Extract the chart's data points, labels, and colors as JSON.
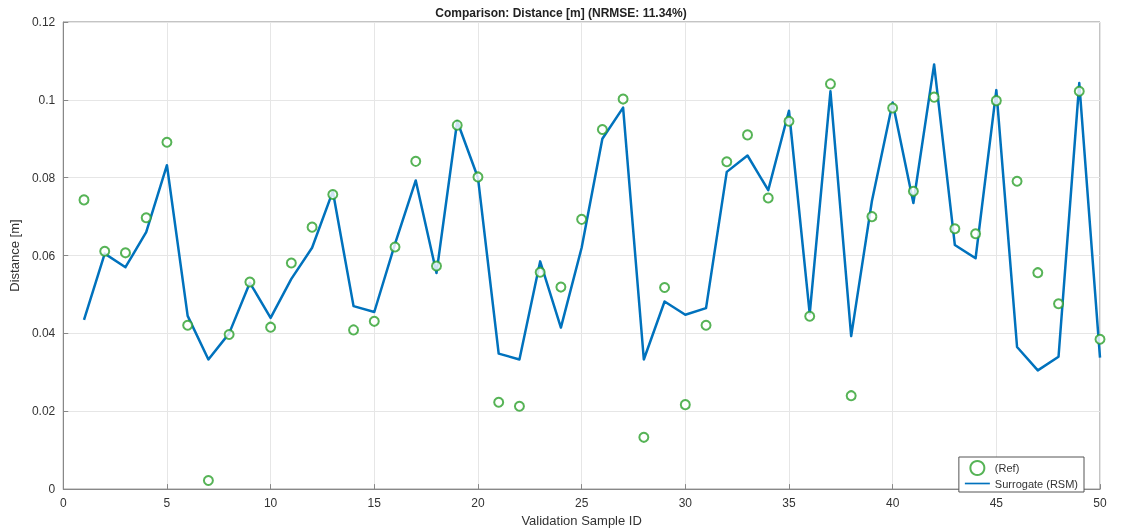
{
  "chart_data": {
    "type": "scatter",
    "title": "Comparison: Distance [m] (NRMSE: 11.34%)",
    "xlabel": "Validation Sample ID",
    "ylabel": "Distance [m]",
    "x": [
      1,
      2,
      3,
      4,
      5,
      6,
      7,
      8,
      9,
      10,
      11,
      12,
      13,
      14,
      15,
      16,
      17,
      18,
      19,
      20,
      21,
      22,
      23,
      24,
      25,
      26,
      27,
      28,
      29,
      30,
      31,
      32,
      33,
      34,
      35,
      36,
      37,
      38,
      39,
      40,
      41,
      42,
      43,
      44,
      45,
      46,
      47,
      48,
      49,
      50
    ],
    "series": [
      {
        "name": "(Ref)",
        "marker": "circle",
        "color": "#2ca02c",
        "values": [
          0.0743,
          0.0611,
          0.0607,
          0.0697,
          0.0891,
          0.0421,
          0.0022,
          0.0397,
          0.0532,
          0.0416,
          0.0581,
          0.0673,
          0.0757,
          0.0409,
          0.0431,
          0.0622,
          0.0842,
          0.0573,
          0.0935,
          0.0802,
          0.0223,
          0.0213,
          0.0557,
          0.0519,
          0.0693,
          0.0924,
          0.1002,
          0.0133,
          0.0518,
          0.0217,
          0.0421,
          0.0841,
          0.091,
          0.0748,
          0.0945,
          0.0444,
          0.1041,
          0.024,
          0.07,
          0.0979,
          0.0765,
          0.1007,
          0.0669,
          0.0656,
          0.0998,
          0.0791,
          0.0556,
          0.0476,
          0.1022,
          0.0385
        ]
      },
      {
        "name": "Surrogate (RSM)",
        "type": "line",
        "marker": "none",
        "line_style": "solid",
        "color": "#0072bd",
        "values": [
          0.0435,
          0.0605,
          0.057,
          0.066,
          0.0832,
          0.0445,
          0.0333,
          0.04,
          0.053,
          0.044,
          0.054,
          0.062,
          0.0765,
          0.047,
          0.0455,
          0.063,
          0.0793,
          0.0555,
          0.0945,
          0.08,
          0.0348,
          0.0333,
          0.0585,
          0.0415,
          0.062,
          0.09,
          0.098,
          0.0333,
          0.0482,
          0.0448,
          0.0465,
          0.0815,
          0.0857,
          0.0768,
          0.0972,
          0.045,
          0.1022,
          0.0393,
          0.074,
          0.0993,
          0.0735,
          0.1091,
          0.0627,
          0.0593,
          0.1025,
          0.0365,
          0.0305,
          0.034,
          0.1043,
          0.0338
        ]
      }
    ],
    "xlim": [
      0,
      50
    ],
    "xticks": [
      0,
      5,
      10,
      15,
      20,
      25,
      30,
      35,
      40,
      45,
      50
    ],
    "ylim": [
      0,
      0.12
    ],
    "yticks": [
      0,
      0.02,
      0.04,
      0.06,
      0.08,
      0.1,
      0.12
    ],
    "grid": true,
    "legend": "bottom right"
  }
}
